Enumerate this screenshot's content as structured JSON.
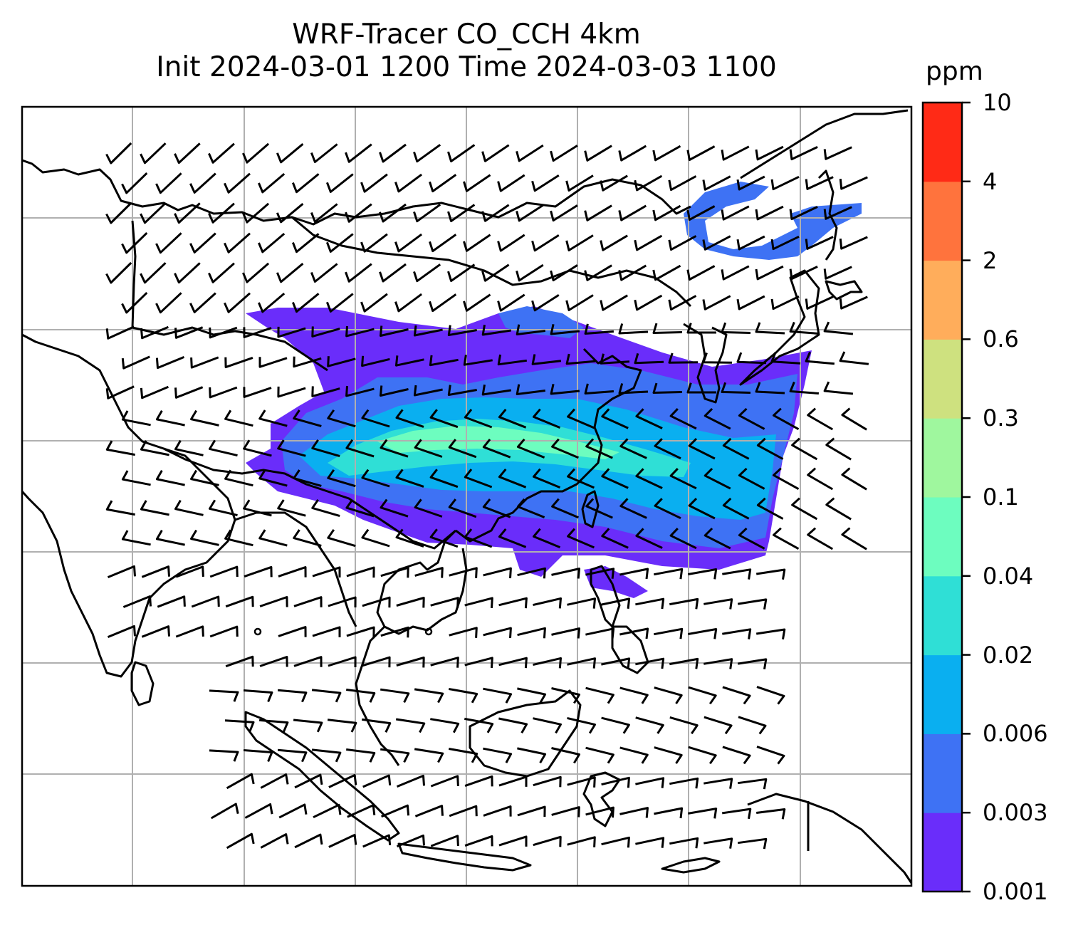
{
  "title": {
    "line1": "WRF-Tracer CO_CCH 4km",
    "line2": "Init 2024-03-01 1200 Time 2024-03-03 1100"
  },
  "colorbar": {
    "unit": "ppm",
    "levels": [
      "0.001",
      "0.003",
      "0.006",
      "0.02",
      "0.04",
      "0.1",
      "0.3",
      "0.6",
      "2",
      "4",
      "10"
    ],
    "colors": [
      "#6a2dfa",
      "#3e72f4",
      "#0aaff0",
      "#2fdfd6",
      "#6dfdbf",
      "#9ff79e",
      "#cee17f",
      "#ffad5b",
      "#ff733d",
      "#ff2a16"
    ]
  },
  "map": {
    "land_outline_color": "#000000",
    "gridline_color": "#b0b0b0",
    "wind_barb_color": "#000000"
  }
}
